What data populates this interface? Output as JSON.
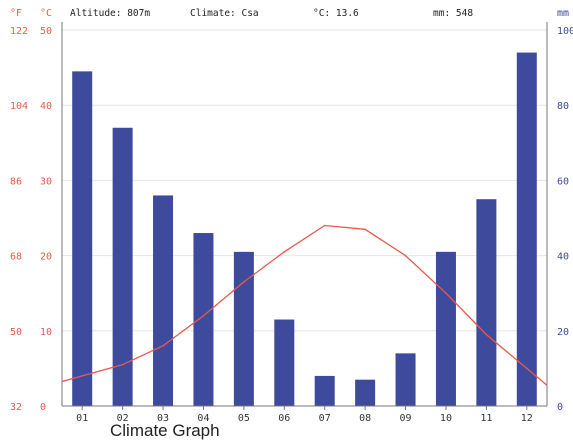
{
  "header": {
    "altitude": "Altitude: 807m",
    "climate": "Climate: Csa",
    "mean_temp": "°C: 13.6",
    "precip": "mm: 548"
  },
  "units": {
    "f": "°F",
    "c": "°C",
    "mm": "mm"
  },
  "caption": "Climate Graph",
  "colors": {
    "temperature": "#e8594d",
    "precipitation": "#3e4a9c",
    "grid": "#e6e6e6",
    "axis": "#777777"
  },
  "chart_data": {
    "type": "bar",
    "categories": [
      "01",
      "02",
      "03",
      "04",
      "05",
      "06",
      "07",
      "08",
      "09",
      "10",
      "11",
      "12"
    ],
    "series": [
      {
        "values": [
          89,
          74,
          56,
          46,
          41,
          23,
          8,
          7,
          14,
          41,
          55,
          94
        ]
      },
      {
        "type": "line",
        "values": [
          4,
          5.5,
          8,
          12,
          16.5,
          20.5,
          24,
          23.5,
          20,
          15,
          9.5,
          5
        ]
      }
    ],
    "y_left_c": {
      "range": [
        0,
        50
      ],
      "ticks": [
        "0",
        "10",
        "20",
        "30",
        "40",
        "50"
      ]
    },
    "y_left_f": {
      "ticks": [
        "32",
        "50",
        "68",
        "86",
        "104",
        "122"
      ]
    },
    "y_right_mm": {
      "range": [
        0,
        100
      ],
      "ticks": [
        "0",
        "20",
        "40",
        "60",
        "80",
        "100"
      ]
    },
    "grid": true
  }
}
